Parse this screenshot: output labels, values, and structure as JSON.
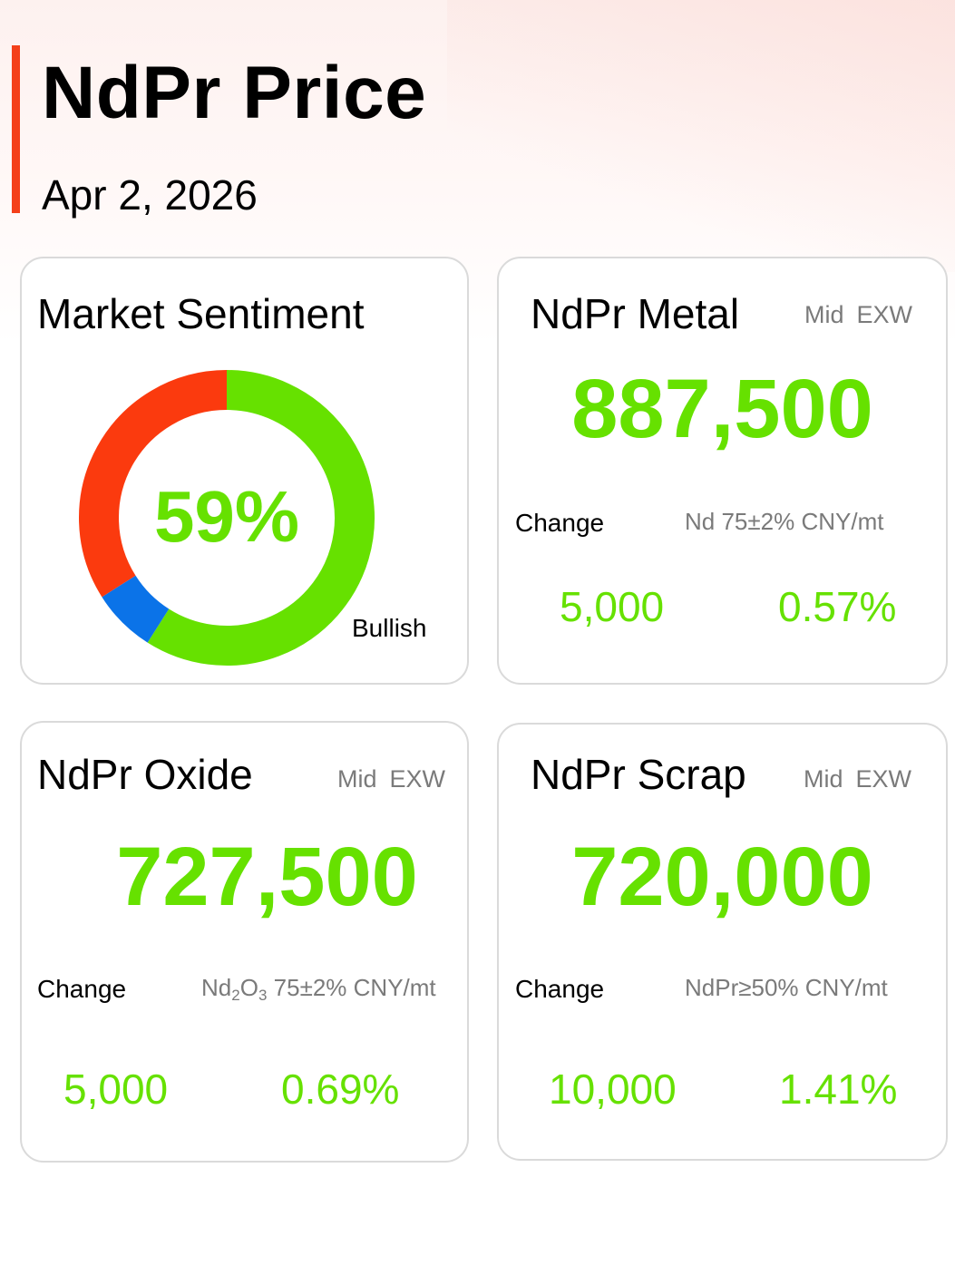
{
  "header": {
    "title": "NdPr Price",
    "date": "Apr 2, 2026"
  },
  "sentiment": {
    "title": "Market Sentiment",
    "percent_label": "59%",
    "label": "Bullish",
    "chart_data": {
      "type": "pie",
      "segments": [
        {
          "value": 59,
          "color": "#66e100"
        },
        {
          "value": 7,
          "color": "#0b73e8"
        },
        {
          "value": 34,
          "color": "#fb3a0e"
        }
      ]
    }
  },
  "cards": {
    "metal": {
      "title": "NdPr Metal",
      "tag1": "Mid",
      "tag2": "EXW",
      "price": "887,500",
      "change_label": "Change",
      "spec": "Nd 75±2% CNY/mt",
      "change_abs": "5,000",
      "change_pct": "0.57%"
    },
    "oxide": {
      "title": "NdPr Oxide",
      "tag1": "Mid",
      "tag2": "EXW",
      "price": "727,500",
      "change_label": "Change",
      "spec_parts": [
        "Nd",
        "2",
        "O",
        "3",
        " 75±2% CNY/mt"
      ],
      "change_abs": "5,000",
      "change_pct": "0.69%"
    },
    "scrap": {
      "title": "NdPr Scrap",
      "tag1": "Mid",
      "tag2": "EXW",
      "price": "720,000",
      "change_label": "Change",
      "spec": "NdPr≥50% CNY/mt",
      "change_abs": "10,000",
      "change_pct": "1.41%"
    }
  },
  "colors": {
    "accent": "#f4401a",
    "up": "#66e100",
    "bearish": "#fb3a0e",
    "neutral": "#0b73e8"
  }
}
